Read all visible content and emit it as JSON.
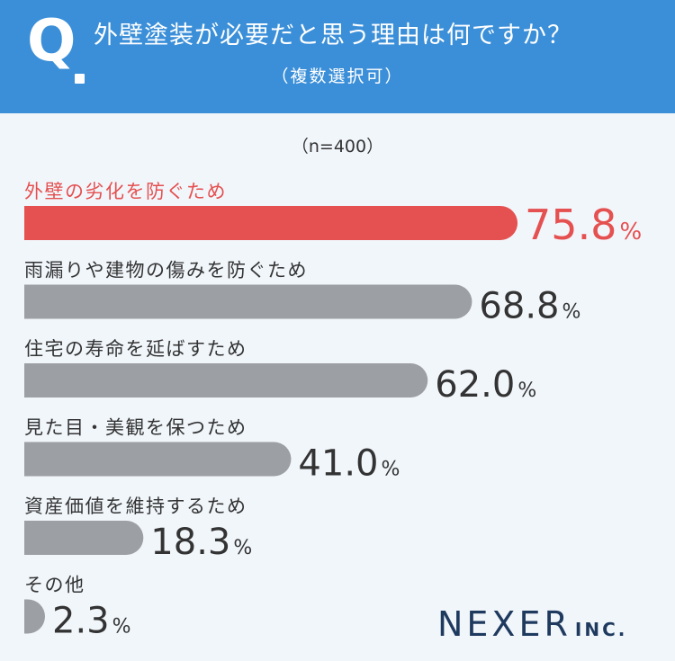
{
  "header": {
    "q_letter": "Q",
    "title": "外壁塗装が必要だと思う理由は何ですか？",
    "subtitle": "（複数選択可）"
  },
  "sample_size": "（n=400）",
  "colors": {
    "header_bg": "#3b8fd8",
    "highlight": "#e55050",
    "bar": "#9c9fa3",
    "text": "#333333",
    "background": "#f1f6fb"
  },
  "chart_data": {
    "type": "bar",
    "orientation": "horizontal",
    "unit": "%",
    "xlim": [
      0,
      100
    ],
    "grid": false,
    "categories": [
      "外壁の劣化を防ぐため",
      "雨漏りや建物の傷みを防ぐため",
      "住宅の寿命を延ばすため",
      "見た目・美観を保つため",
      "資産価値を維持するため",
      "その他"
    ],
    "values": [
      75.8,
      68.8,
      62.0,
      41.0,
      18.3,
      2.3
    ],
    "value_labels": [
      "75.8",
      "68.8",
      "62.0",
      "41.0",
      "18.3",
      "2.3"
    ],
    "highlight_index": 0
  },
  "logo": {
    "main": "NEXER",
    "sub": "INC."
  }
}
